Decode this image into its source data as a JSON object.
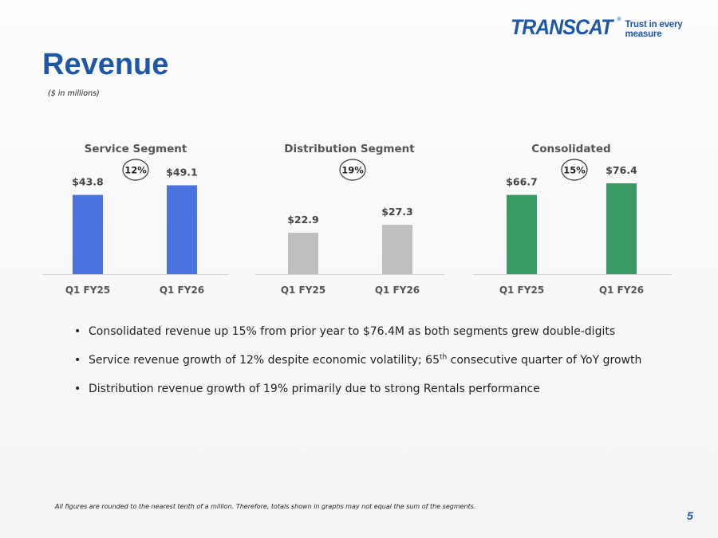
{
  "logo": {
    "wordmark": "TRANSCAT",
    "tagline": "Trust in every measure"
  },
  "page": {
    "title": "Revenue",
    "subtitle": "($ in millions)",
    "footnote": "All figures are rounded to the nearest tenth of a million. Therefore, totals shown in graphs may not equal the sum of the segments.",
    "page_number": "5"
  },
  "bullets": [
    {
      "text": "Consolidated revenue up 15% from prior year to $76.4M as both segments grew double-digits"
    },
    {
      "pre": "Service revenue growth of 12% despite economic volatility; 65",
      "sup": "th",
      "post": " consecutive quarter of YoY growth"
    },
    {
      "text": "Distribution revenue growth of 19% primarily due to strong Rentals performance"
    }
  ],
  "chart_data": [
    {
      "type": "bar",
      "title": "Service Segment",
      "categories": [
        "Q1 FY25",
        "Q1 FY26"
      ],
      "values": [
        43.8,
        49.1
      ],
      "labels": [
        "$43.8",
        "$49.1"
      ],
      "growth": "12%",
      "color": "#4a73e0"
    },
    {
      "type": "bar",
      "title": "Distribution Segment",
      "categories": [
        "Q1 FY25",
        "Q1 FY26"
      ],
      "values": [
        22.9,
        27.3
      ],
      "labels": [
        "$22.9",
        "$27.3"
      ],
      "growth": "19%",
      "color": "#c0c0c0"
    },
    {
      "type": "bar",
      "title": "Consolidated",
      "categories": [
        "Q1 FY25",
        "Q1 FY26"
      ],
      "values": [
        66.7,
        76.4
      ],
      "labels": [
        "$66.7",
        "$76.4"
      ],
      "growth": "15%",
      "color": "#3a9a64"
    }
  ]
}
